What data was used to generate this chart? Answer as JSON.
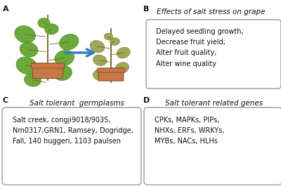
{
  "panel_A_label": "A",
  "panel_B_label": "B",
  "panel_C_label": "C",
  "panel_D_label": "D",
  "panel_B_title": "Effects of salt stress on grape",
  "panel_B_lines": "Delayed seedling growth;\nDecrease fruit yield;\nAlter fruit quality;\nAlter wine quality",
  "panel_C_title": "Salt tolerant  germplasms",
  "panel_C_lines": "Salt creek, congji9018/9035,\nNm0317,GRN1, Ramsey, Dogridge,\nFall, 140 huggeri, 1103 paulsen",
  "panel_D_title": "Salt tolerant related genes",
  "panel_D_lines": "CPKs, MAPKs, PIPs,\nNHXs, ERFs, WRKYs,\nMYBs, NACs, HLHs",
  "arrow_color": "#3A7CC3",
  "box_edge_color": "#999999",
  "background_color": "#ffffff",
  "text_color": "#111111",
  "title_fontsize": 7.5,
  "content_fontsize": 7.0,
  "panel_label_fontsize": 8,
  "leaf_color_healthy": "#6aaa3a",
  "leaf_edge_healthy": "#4a8a20",
  "leaf_color_stressed": "#a0a858",
  "leaf_edge_stressed": "#808040",
  "pot_color": "#c87848",
  "pot_edge": "#8a5028",
  "stem_color": "#7a5a20"
}
